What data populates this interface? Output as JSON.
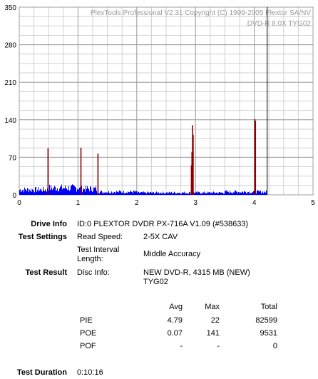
{
  "watermark": {
    "line1": "PlexTools Professional V2.31 Copyright (C) 1999-2005 Plextor SA/NV",
    "line2": "DVD-R 8.0X TYG02"
  },
  "chart_data": {
    "type": "bar",
    "y_ticks": [
      0,
      70,
      140,
      210,
      280,
      350
    ],
    "x_ticks": [
      0,
      1,
      2,
      3,
      4,
      5
    ],
    "xlim": [
      0,
      5
    ],
    "ylim": [
      0,
      350
    ],
    "grid": true,
    "baseline_series": {
      "name": "PIE",
      "color": "#0000ff",
      "segments": [
        {
          "x0": 0.0,
          "x1": 0.5,
          "level": 12
        },
        {
          "x0": 0.5,
          "x1": 1.0,
          "level": 16
        },
        {
          "x0": 1.0,
          "x1": 1.3,
          "level": 14
        },
        {
          "x0": 1.3,
          "x1": 2.0,
          "level": 7
        },
        {
          "x0": 2.0,
          "x1": 2.95,
          "level": 5
        },
        {
          "x0": 2.95,
          "x1": 3.5,
          "level": 5
        },
        {
          "x0": 3.5,
          "x1": 4.2,
          "level": 7
        }
      ]
    },
    "spikes_series": {
      "name": "POE",
      "color": "#8b0000",
      "points": [
        {
          "x": 0.49,
          "y": 87
        },
        {
          "x": 1.05,
          "y": 88
        },
        {
          "x": 1.34,
          "y": 77
        },
        {
          "x": 2.93,
          "y": 55
        },
        {
          "x": 2.94,
          "y": 80
        },
        {
          "x": 2.95,
          "y": 130
        },
        {
          "x": 2.96,
          "y": 112
        },
        {
          "x": 4.01,
          "y": 141
        },
        {
          "x": 4.02,
          "y": 138
        }
      ]
    },
    "marker_x": 4.22
  },
  "info": {
    "drive_info_label": "Drive Info",
    "drive_info_value": "ID:0 PLEXTOR DVDR PX-716A V1.09 (#538633)",
    "test_settings_label": "Test Settings",
    "read_speed_label": "Read Speed:",
    "read_speed_value": "2-5X CAV",
    "interval_label_1": "Test Interval",
    "interval_label_2": "Length:",
    "interval_value": "Middle Accuracy",
    "test_result_label": "Test Result",
    "disc_info_label": "Disc Info:",
    "disc_info_line1": "NEW DVD-R, 4315 MB (NEW)",
    "disc_info_line2": "TYG02",
    "test_duration_label": "Test Duration",
    "test_duration_value": "0:10:16"
  },
  "stats": {
    "col_avg": "Avg",
    "col_max": "Max",
    "col_total": "Total",
    "rows": [
      {
        "name": "PIE",
        "avg": "4.79",
        "max": "22",
        "total": "82599"
      },
      {
        "name": "POE",
        "avg": "0.07",
        "max": "141",
        "total": "9531"
      },
      {
        "name": "POF",
        "avg": "-",
        "max": "-",
        "total": "0"
      }
    ]
  }
}
